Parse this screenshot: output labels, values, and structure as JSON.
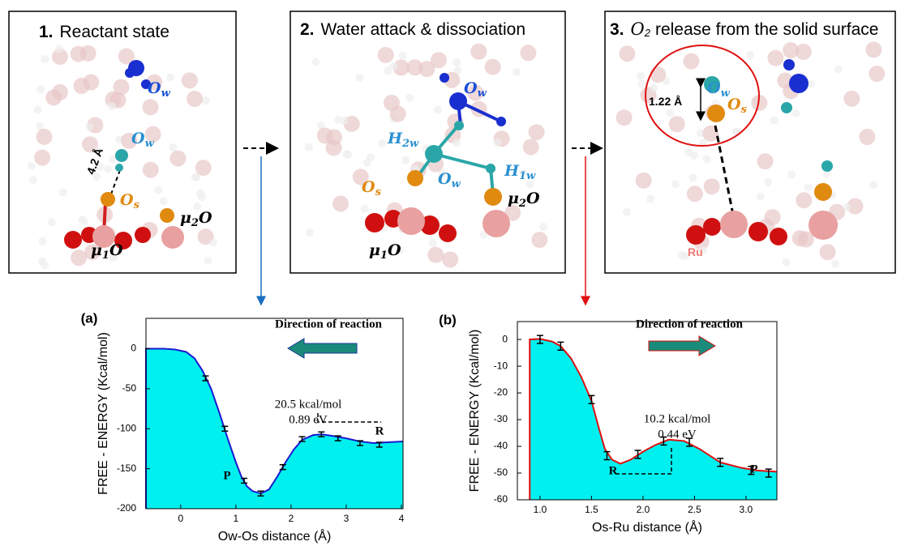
{
  "panels": [
    {
      "number": "1.",
      "title": "Reactant state",
      "labels": [
        {
          "text": "O",
          "sub": "w"
        },
        {
          "text": "O",
          "sub": "w"
        },
        {
          "text": "4.2 Å"
        },
        {
          "text": "O",
          "sub": "s"
        },
        {
          "text": "μ",
          "sub": "2",
          "after": "O"
        },
        {
          "text": "μ",
          "sub": "1",
          "after": "O"
        }
      ]
    },
    {
      "number": "2.",
      "title": "Water attack & dissociation",
      "labels": [
        {
          "text": "O",
          "sub": "w"
        },
        {
          "text": "H",
          "sub": "2w"
        },
        {
          "text": "O",
          "sub": "w"
        },
        {
          "text": "H",
          "sub": "1w"
        },
        {
          "text": "O",
          "sub": "s"
        },
        {
          "text": "μ",
          "sub": "2",
          "after": "O"
        },
        {
          "text": "μ",
          "sub": "1",
          "after": "O"
        }
      ]
    },
    {
      "number": "3.",
      "title_symbol": "O",
      "title_sub": "2",
      "title": "release from the solid surface",
      "labels": [
        {
          "text": "O",
          "sub": "w"
        },
        {
          "text": "1.22 Å"
        },
        {
          "text": "O",
          "sub": "s"
        },
        {
          "text": "Ru"
        }
      ]
    }
  ],
  "chart_data": [
    {
      "type": "line",
      "label": "(a)",
      "x_label": "Ow-Os distance (Å)",
      "y_label": "FREE - ENERGY (Kcal/mol)",
      "xlim": [
        -0.63,
        4.03
      ],
      "ylim": [
        -200,
        38
      ],
      "xticks": [
        0,
        1,
        2,
        3,
        4
      ],
      "yticks": [
        0,
        -50,
        -100,
        -150,
        -200
      ],
      "color": "#1a1ad0",
      "fill_color": "#00f0f0",
      "x": [
        -0.63,
        -0.63,
        -0.3,
        -0.1,
        0.1,
        0.25,
        0.4,
        0.55,
        0.7,
        0.85,
        1.0,
        1.1,
        1.2,
        1.3,
        1.45,
        1.6,
        1.75,
        1.9,
        2.05,
        2.2,
        2.4,
        2.55,
        2.75,
        3.0,
        3.25,
        3.5,
        3.75,
        4.03
      ],
      "values": [
        -200,
        0,
        0,
        -1,
        -4,
        -12,
        -28,
        -50,
        -80,
        -112,
        -142,
        -160,
        -172,
        -178,
        -181,
        -176,
        -160,
        -142,
        -126,
        -114,
        -108,
        -107,
        -109,
        -112,
        -116,
        -118,
        -117,
        -116
      ],
      "error_points": {
        "x": [
          0.45,
          0.8,
          1.15,
          1.45,
          1.85,
          2.2,
          2.55,
          2.85,
          3.25,
          3.6
        ],
        "values": [
          -37,
          -100,
          -165,
          -181,
          -148,
          -113,
          -107,
          -112,
          -118,
          -120
        ],
        "errors": [
          3,
          3,
          3,
          3,
          3,
          3,
          3,
          3,
          3,
          3
        ]
      },
      "annotations": [
        "Direction of reaction",
        "20.5 kcal/mol",
        "0.89 eV",
        "R",
        "P"
      ]
    },
    {
      "type": "line",
      "label": "(b)",
      "x_label": "Os-Ru distance (Å)",
      "y_label": "FREE - ENERGY (Kcal/mol)",
      "xlim": [
        0.78,
        3.3
      ],
      "ylim": [
        -60,
        6.7
      ],
      "xticks": [
        {
          "value": 1,
          "label": "1.0"
        },
        1.5,
        {
          "value": 2,
          "label": "2.0"
        },
        2.5,
        {
          "value": 3,
          "label": "3.0"
        }
      ],
      "yticks": [
        0,
        -10,
        -20,
        -30,
        -40,
        -50,
        -60
      ],
      "color": "#e01010",
      "fill_color": "#00f0f0",
      "x": [
        0.9,
        0.9,
        1.0,
        1.12,
        1.2,
        1.3,
        1.4,
        1.5,
        1.57,
        1.63,
        1.7,
        1.78,
        1.88,
        2.0,
        2.12,
        2.25,
        2.4,
        2.55,
        2.75,
        2.95,
        3.1,
        3.3
      ],
      "values": [
        -60,
        0,
        0.2,
        -0.8,
        -2.5,
        -7,
        -14,
        -23,
        -33,
        -41,
        -45,
        -46.5,
        -45,
        -42,
        -39.5,
        -37.5,
        -38,
        -41,
        -46,
        -48,
        -49,
        -49.5
      ],
      "error_points": {
        "x": [
          1.0,
          1.2,
          1.5,
          1.65,
          1.95,
          2.2,
          2.45,
          2.75,
          3.05,
          3.22
        ],
        "values": [
          0,
          -2.5,
          -22.5,
          -43.5,
          -43,
          -38,
          -38.5,
          -46,
          -49,
          -50
        ],
        "errors": [
          1.5,
          1.5,
          1.5,
          1.5,
          1.5,
          1.5,
          1.5,
          1.5,
          1.5,
          1.5
        ]
      },
      "annotations": [
        "Direction of reaction",
        "10.2 kcal/mol",
        "0.44 eV",
        "R",
        "P"
      ]
    }
  ]
}
